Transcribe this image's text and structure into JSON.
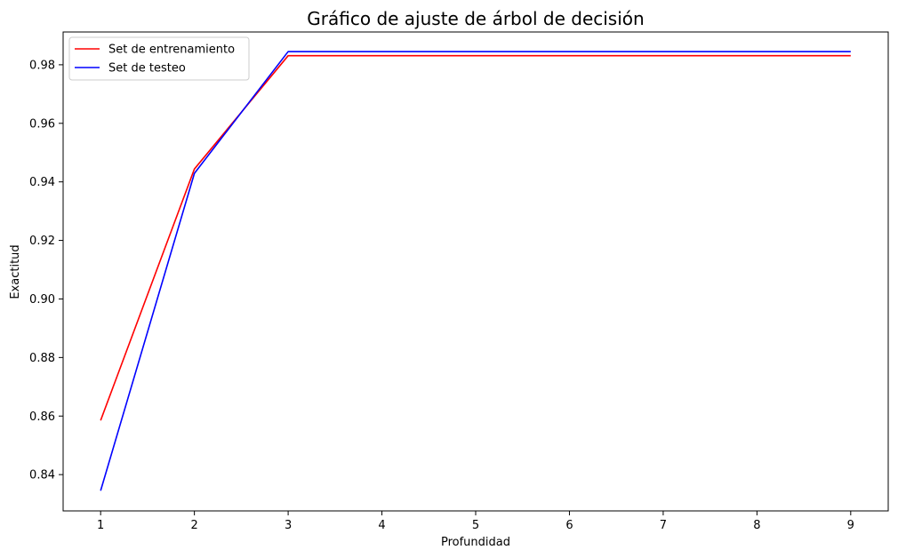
{
  "chart_data": {
    "type": "line",
    "title": "Gráfico de ajuste de árbol de decisión",
    "xlabel": "Profundidad",
    "ylabel": "Exactitud",
    "x": [
      1,
      2,
      3,
      4,
      5,
      6,
      7,
      8,
      9
    ],
    "xlim": [
      0.6,
      9.4
    ],
    "ylim": [
      0.8276,
      0.9912
    ],
    "xticks": [
      1,
      2,
      3,
      4,
      5,
      6,
      7,
      8,
      9
    ],
    "yticks": [
      0.84,
      0.86,
      0.88,
      0.9,
      0.92,
      0.94,
      0.96,
      0.98
    ],
    "ytick_labels": [
      "0.84",
      "0.86",
      "0.88",
      "0.90",
      "0.92",
      "0.94",
      "0.96",
      "0.98"
    ],
    "grid": false,
    "legend_position": "upper-left",
    "series": [
      {
        "name": "Set de entrenamiento",
        "color": "#ff0000",
        "values": [
          0.8585,
          0.9444,
          0.9831,
          0.9831,
          0.9831,
          0.9831,
          0.9831,
          0.9831,
          0.9831
        ]
      },
      {
        "name": "Set de testeo",
        "color": "#0000ff",
        "values": [
          0.8345,
          0.9429,
          0.9845,
          0.9845,
          0.9845,
          0.9845,
          0.9845,
          0.9845,
          0.9845
        ]
      }
    ]
  }
}
